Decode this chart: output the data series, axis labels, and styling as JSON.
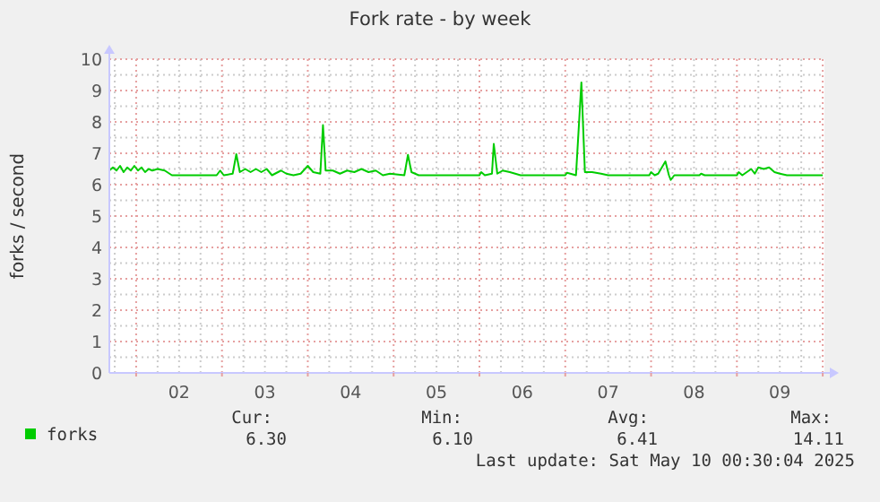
{
  "chart_data": {
    "type": "line",
    "title": "Fork rate - by week",
    "ylabel": "forks / second",
    "xlim": [
      1.6875,
      10.02
    ],
    "xticks": [
      {
        "value": 2,
        "label": null
      },
      {
        "value": 2.5,
        "label": "02"
      },
      {
        "value": 3,
        "label": null
      },
      {
        "value": 3.5,
        "label": "03"
      },
      {
        "value": 4,
        "label": null
      },
      {
        "value": 4.5,
        "label": "04"
      },
      {
        "value": 5,
        "label": null
      },
      {
        "value": 5.5,
        "label": "05"
      },
      {
        "value": 6,
        "label": null
      },
      {
        "value": 6.5,
        "label": "06"
      },
      {
        "value": 7,
        "label": null
      },
      {
        "value": 7.5,
        "label": "07"
      },
      {
        "value": 8,
        "label": null
      },
      {
        "value": 8.5,
        "label": "08"
      },
      {
        "value": 9,
        "label": null
      },
      {
        "value": 9.5,
        "label": "09"
      },
      {
        "value": 10,
        "label": null
      }
    ],
    "ylim": [
      0,
      10
    ],
    "yticks": [
      0,
      1,
      2,
      3,
      4,
      5,
      6,
      7,
      8,
      9,
      10
    ],
    "grid": true,
    "legend": "bottom",
    "series": [
      {
        "name": "forks",
        "color": "#00cc00",
        "x": [
          1.6875,
          1.729,
          1.771,
          1.813,
          1.854,
          1.896,
          1.938,
          1.979,
          2.021,
          2.063,
          2.104,
          2.146,
          2.188,
          2.25,
          2.333,
          2.417,
          2.708,
          2.938,
          2.979,
          3.021,
          3.125,
          3.167,
          3.208,
          3.271,
          3.333,
          3.396,
          3.458,
          3.521,
          3.583,
          3.688,
          3.75,
          3.833,
          3.917,
          4.0,
          4.063,
          4.146,
          4.177,
          4.208,
          4.292,
          4.375,
          4.458,
          4.542,
          4.625,
          4.708,
          4.792,
          4.875,
          4.958,
          5.125,
          5.167,
          5.208,
          5.292,
          6.0,
          6.021,
          6.063,
          6.146,
          6.167,
          6.208,
          6.271,
          6.354,
          6.417,
          6.479,
          7.0,
          7.021,
          7.125,
          7.188,
          7.229,
          7.313,
          7.417,
          7.5,
          7.979,
          8.0,
          8.042,
          8.083,
          8.167,
          8.208,
          8.229,
          8.271,
          8.563,
          8.583,
          8.625,
          9.0,
          9.021,
          9.063,
          9.167,
          9.208,
          9.25,
          9.313,
          9.375,
          9.438,
          9.5,
          9.583,
          10.0
        ],
        "values": [
          6.45,
          6.55,
          6.45,
          6.6,
          6.4,
          6.55,
          6.45,
          6.6,
          6.45,
          6.55,
          6.4,
          6.5,
          6.45,
          6.5,
          6.45,
          6.3,
          6.3,
          6.3,
          6.45,
          6.3,
          6.35,
          6.97,
          6.4,
          6.5,
          6.4,
          6.5,
          6.4,
          6.5,
          6.3,
          6.45,
          6.35,
          6.3,
          6.35,
          6.6,
          6.4,
          6.35,
          7.9,
          6.45,
          6.45,
          6.35,
          6.45,
          6.4,
          6.5,
          6.4,
          6.45,
          6.3,
          6.35,
          6.3,
          6.95,
          6.4,
          6.3,
          6.3,
          6.4,
          6.3,
          6.35,
          7.3,
          6.35,
          6.45,
          6.4,
          6.35,
          6.3,
          6.3,
          6.38,
          6.3,
          9.26,
          6.4,
          6.4,
          6.35,
          6.3,
          6.3,
          6.4,
          6.3,
          6.35,
          6.74,
          6.3,
          6.15,
          6.3,
          6.3,
          6.35,
          6.3,
          6.3,
          6.4,
          6.3,
          6.5,
          6.35,
          6.55,
          6.5,
          6.55,
          6.4,
          6.35,
          6.3,
          6.3
        ]
      }
    ],
    "annotations": [
      "Cur:",
      "Min:",
      "Avg:",
      "Max:",
      "6.30",
      "6.10",
      "6.41",
      "14.11",
      "Last update: Sat May 10 00:30:04 2025"
    ]
  }
}
